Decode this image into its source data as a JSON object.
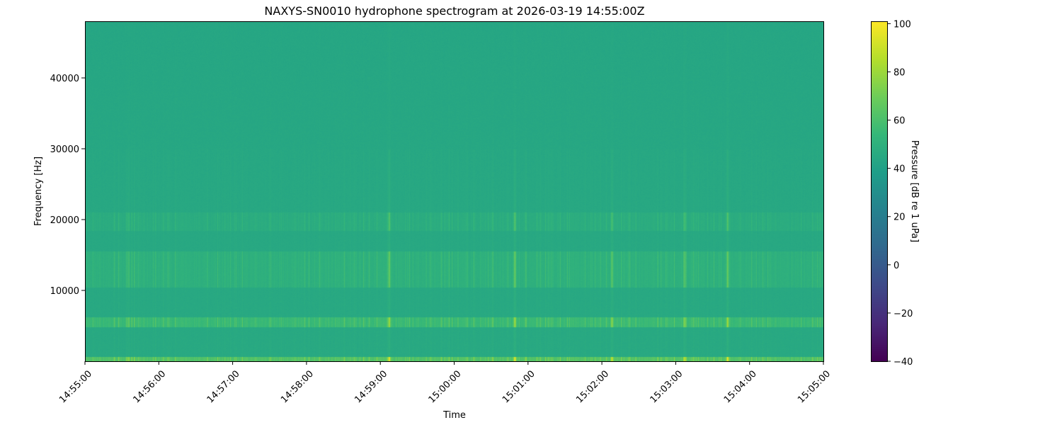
{
  "chart_data": {
    "type": "heatmap",
    "title": "NAXYS-SN0010 hydrophone spectrogram at 2026-03-19 14:55:00Z",
    "xlabel": "Time",
    "ylabel": "Frequency [Hz]",
    "xlim": [
      "14:55:00",
      "15:05:00"
    ],
    "ylim": [
      0,
      48000
    ],
    "x_ticks": [
      "14:55:00",
      "14:56:00",
      "14:57:00",
      "14:58:00",
      "14:59:00",
      "15:00:00",
      "15:01:00",
      "15:02:00",
      "15:03:00",
      "15:04:00",
      "15:05:00"
    ],
    "y_ticks": [
      10000,
      20000,
      30000,
      40000
    ],
    "colormap": "viridis",
    "colorbar": {
      "label": "Pressure [dB re 1 uPa]",
      "range": [
        -40,
        101
      ],
      "ticks": [
        -40,
        -20,
        0,
        20,
        40,
        60,
        80,
        100
      ]
    },
    "background_level_db": 45,
    "frequency_bands": [
      {
        "from_hz": 0,
        "to_hz": 600,
        "level_db": 62
      },
      {
        "from_hz": 4800,
        "to_hz": 6200,
        "level_db": 56
      },
      {
        "from_hz": 10500,
        "to_hz": 15500,
        "level_db": 51
      },
      {
        "from_hz": 18500,
        "to_hz": 21000,
        "level_db": 49
      }
    ],
    "broadband_events": [
      "14:59:07",
      "15:00:49",
      "15:02:08",
      "15:03:07",
      "15:03:42"
    ]
  }
}
